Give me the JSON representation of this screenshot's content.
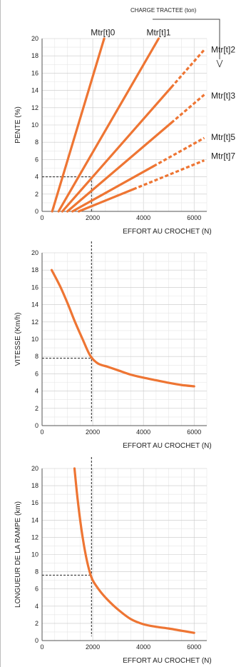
{
  "colors": {
    "curve": "#ee7533",
    "grid_minor": "#e6e6e6",
    "grid_major": "#c8c8c8",
    "guide": "#222222"
  },
  "header": {
    "charge_label": "CHARGE TRACTEE (ton)"
  },
  "chart_data": [
    {
      "type": "line",
      "xlabel": "EFFORT AU CROCHET (N)",
      "ylabel": "PENTE (%)",
      "xlim": [
        0,
        6500
      ],
      "ylim": [
        0,
        20
      ],
      "xticks": [
        "0",
        "2000",
        "4000",
        "6000"
      ],
      "yticks": [
        "0",
        "2",
        "4",
        "6",
        "8",
        "10",
        "12",
        "14",
        "16",
        "18",
        "20"
      ],
      "grid": true,
      "series": [
        {
          "name": "Mtr[t]0",
          "x": [
            400,
            2450
          ],
          "y": [
            0,
            20
          ],
          "dashed_from_x": null,
          "label_at": [
            2400,
            20.7
          ]
        },
        {
          "name": "Mtr[t]1",
          "x": [
            650,
            4600
          ],
          "y": [
            0,
            20
          ],
          "dashed_from_x": null,
          "label_at": [
            4600,
            20.7
          ]
        },
        {
          "name": "Mtr[t]2",
          "x": [
            800,
            6400
          ],
          "y": [
            0,
            18.7
          ],
          "dashed_from_x": 5100,
          "label_at": [
            6700,
            18.7
          ]
        },
        {
          "name": "Mtr[t]3",
          "x": [
            1000,
            6400
          ],
          "y": [
            0,
            13.5
          ],
          "dashed_from_x": 5100,
          "label_at": [
            6700,
            13.4
          ]
        },
        {
          "name": "Mtr[t]5",
          "x": [
            1200,
            6400
          ],
          "y": [
            0,
            8.5
          ],
          "dashed_from_x": 4400,
          "label_at": [
            6700,
            8.6
          ]
        },
        {
          "name": "Mtr[t]7",
          "x": [
            1450,
            6400
          ],
          "y": [
            0,
            5.9
          ],
          "dashed_from_x": 3600,
          "label_at": [
            6700,
            6.4
          ]
        }
      ],
      "guide": {
        "x": 1950,
        "y": 4
      }
    },
    {
      "type": "line",
      "xlabel": "EFFORT AU CROCHET (N)",
      "ylabel": "VITESSE  (Km/h)",
      "xlim": [
        0,
        6500
      ],
      "ylim": [
        0,
        20
      ],
      "xticks": [
        "0",
        "2000",
        "4000",
        "6000"
      ],
      "yticks": [
        "0",
        "2",
        "4",
        "6",
        "8",
        "10",
        "12",
        "14",
        "16",
        "18",
        "20"
      ],
      "grid": true,
      "series": [
        {
          "x": [
            380,
            700,
            1000,
            1300,
            1600,
            1900,
            2200,
            2600,
            3000,
            3500,
            4000,
            4500,
            5000,
            5500,
            6000
          ],
          "y": [
            18,
            16.2,
            14.2,
            12.0,
            10.0,
            8.1,
            7.2,
            6.8,
            6.4,
            5.9,
            5.55,
            5.25,
            4.95,
            4.7,
            4.55
          ]
        }
      ],
      "guide": {
        "x": 1950,
        "y": 7.8
      }
    },
    {
      "type": "line",
      "xlabel": "EFFORT AU CROCHET (N)",
      "ylabel": "LONGUEUR DE LA RAMPE  (km)",
      "xlim": [
        0,
        6500
      ],
      "ylim": [
        0,
        20
      ],
      "xticks": [
        "0",
        "2000",
        "4000",
        "6000"
      ],
      "yticks": [
        "0",
        "2",
        "4",
        "6",
        "8",
        "10",
        "12",
        "14",
        "16",
        "18",
        "20"
      ],
      "grid": true,
      "series": [
        {
          "x": [
            1280,
            1400,
            1550,
            1700,
            1850,
            2000,
            2300,
            2600,
            3000,
            3500,
            4000,
            4500,
            5000,
            5500,
            6000
          ],
          "y": [
            20,
            16.5,
            13.0,
            10.3,
            8.3,
            7.0,
            5.7,
            4.7,
            3.6,
            2.5,
            1.9,
            1.6,
            1.4,
            1.15,
            0.9
          ]
        }
      ],
      "guide": {
        "x": 1950,
        "y": 7.6
      }
    }
  ]
}
